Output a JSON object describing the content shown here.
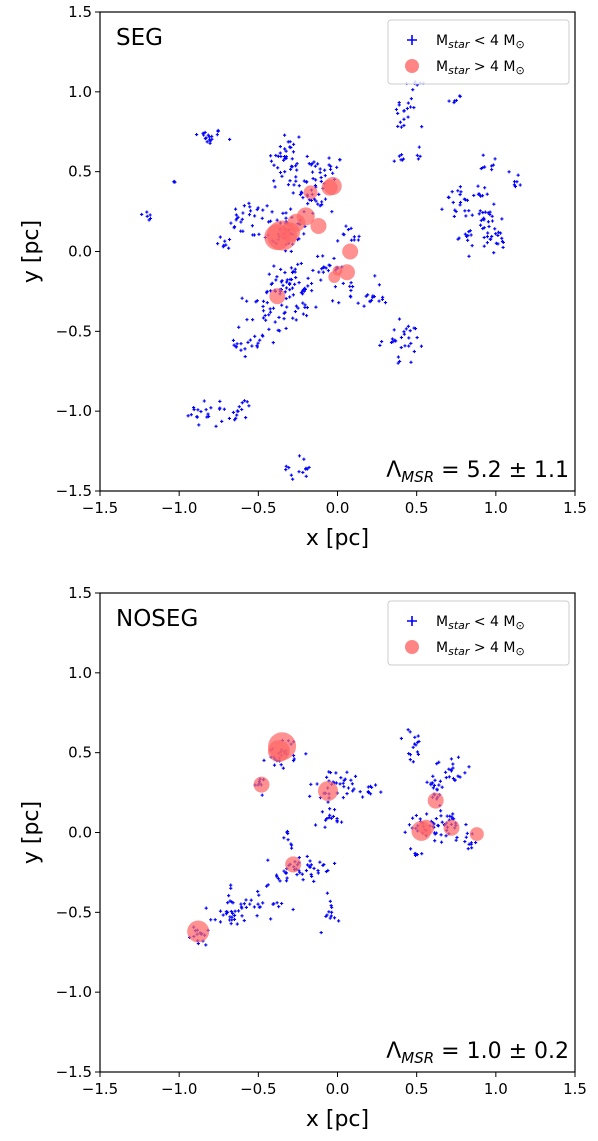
{
  "chart_data": [
    {
      "type": "scatter",
      "title": "SEG",
      "xlabel": "x [pc]",
      "ylabel": "y [pc]",
      "xlim": [
        -1.5,
        1.5
      ],
      "ylim": [
        -1.5,
        1.5
      ],
      "ticks": [
        "−1.5",
        "−1.0",
        "−0.5",
        "0.0",
        "0.5",
        "1.0",
        "1.5"
      ],
      "tick_values": [
        -1.5,
        -1.0,
        -0.5,
        0.0,
        0.5,
        1.0,
        1.5
      ],
      "grid": false,
      "legend_position": "top-right",
      "annotation": {
        "lhs": "Λ",
        "sub": "MSR",
        "rhs": " = 5.2 ± 1.1"
      },
      "series": [
        {
          "name": "Mstar < 4 M⊙",
          "name_main": "M",
          "name_sub": "star",
          "name_rest": " < 4 M",
          "name_sym": "⊙",
          "marker": "plus",
          "color": "#0000ff",
          "clusters": [
            {
              "x": -0.82,
              "y": 0.72,
              "sx": 0.05,
              "sy": 0.025,
              "n": 18
            },
            {
              "x": -1.2,
              "y": 0.22,
              "sx": 0.02,
              "sy": 0.03,
              "n": 6
            },
            {
              "x": -1.03,
              "y": 0.44,
              "sx": 0.01,
              "sy": 0.01,
              "n": 3
            },
            {
              "x": -0.55,
              "y": 0.2,
              "sx": 0.07,
              "sy": 0.06,
              "n": 25
            },
            {
              "x": -0.7,
              "y": 0.05,
              "sx": 0.03,
              "sy": 0.03,
              "n": 8
            },
            {
              "x": -0.35,
              "y": 0.14,
              "sx": 0.08,
              "sy": 0.08,
              "n": 45
            },
            {
              "x": -0.33,
              "y": 0.58,
              "sx": 0.06,
              "sy": 0.1,
              "n": 35
            },
            {
              "x": -0.2,
              "y": 0.45,
              "sx": 0.07,
              "sy": 0.07,
              "n": 30
            },
            {
              "x": -0.12,
              "y": 0.32,
              "sx": 0.06,
              "sy": 0.05,
              "n": 18
            },
            {
              "x": -0.05,
              "y": 0.5,
              "sx": 0.04,
              "sy": 0.06,
              "n": 15
            },
            {
              "x": -0.3,
              "y": -0.22,
              "sx": 0.08,
              "sy": 0.06,
              "n": 35
            },
            {
              "x": -0.45,
              "y": -0.4,
              "sx": 0.07,
              "sy": 0.09,
              "n": 32
            },
            {
              "x": -0.55,
              "y": -0.58,
              "sx": 0.05,
              "sy": 0.05,
              "n": 18
            },
            {
              "x": -0.22,
              "y": -0.35,
              "sx": 0.04,
              "sy": 0.05,
              "n": 15
            },
            {
              "x": -0.35,
              "y": -0.15,
              "sx": 0.06,
              "sy": 0.04,
              "n": 15
            },
            {
              "x": -0.05,
              "y": -0.1,
              "sx": 0.05,
              "sy": 0.04,
              "n": 18
            },
            {
              "x": 0.1,
              "y": -0.25,
              "sx": 0.07,
              "sy": 0.05,
              "n": 18
            },
            {
              "x": 0.25,
              "y": -0.3,
              "sx": 0.04,
              "sy": 0.02,
              "n": 8
            },
            {
              "x": 0.05,
              "y": 0.12,
              "sx": 0.03,
              "sy": 0.03,
              "n": 6
            },
            {
              "x": 0.4,
              "y": -0.55,
              "sx": 0.07,
              "sy": 0.05,
              "n": 26
            },
            {
              "x": 0.38,
              "y": -0.68,
              "sx": 0.02,
              "sy": 0.02,
              "n": 3
            },
            {
              "x": 0.42,
              "y": 0.85,
              "sx": 0.04,
              "sy": 0.06,
              "n": 18
            },
            {
              "x": 0.5,
              "y": 1.06,
              "sx": 0.03,
              "sy": 0.02,
              "n": 7
            },
            {
              "x": 0.75,
              "y": 0.95,
              "sx": 0.02,
              "sy": 0.02,
              "n": 6
            },
            {
              "x": 0.4,
              "y": 0.57,
              "sx": 0.02,
              "sy": 0.02,
              "n": 6
            },
            {
              "x": 0.53,
              "y": 0.63,
              "sx": 0.02,
              "sy": 0.02,
              "n": 4
            },
            {
              "x": 0.8,
              "y": 0.3,
              "sx": 0.06,
              "sy": 0.05,
              "n": 28
            },
            {
              "x": 0.95,
              "y": 0.22,
              "sx": 0.05,
              "sy": 0.07,
              "n": 22
            },
            {
              "x": 1.0,
              "y": 0.06,
              "sx": 0.05,
              "sy": 0.04,
              "n": 18
            },
            {
              "x": 0.83,
              "y": 0.08,
              "sx": 0.05,
              "sy": 0.04,
              "n": 12
            },
            {
              "x": 0.97,
              "y": 0.55,
              "sx": 0.03,
              "sy": 0.03,
              "n": 8
            },
            {
              "x": 1.12,
              "y": 0.45,
              "sx": 0.02,
              "sy": 0.03,
              "n": 8
            },
            {
              "x": -0.8,
              "y": -1.02,
              "sx": 0.08,
              "sy": 0.04,
              "n": 25
            },
            {
              "x": -0.62,
              "y": -0.97,
              "sx": 0.03,
              "sy": 0.04,
              "n": 10
            },
            {
              "x": -0.25,
              "y": -1.36,
              "sx": 0.05,
              "sy": 0.04,
              "n": 14
            },
            {
              "x": 0.12,
              "y": 0.07,
              "sx": 0.02,
              "sy": 0.02,
              "n": 5
            }
          ]
        },
        {
          "name": "Mstar > 4 M⊙",
          "name_main": "M",
          "name_sub": "star",
          "name_rest": " > 4 M",
          "name_sym": "⊙",
          "marker": "circle",
          "color": "#ff6666",
          "points": [
            {
              "x": -0.35,
              "y": 0.1,
              "r": 15
            },
            {
              "x": -0.38,
              "y": 0.09,
              "r": 13
            },
            {
              "x": -0.3,
              "y": 0.12,
              "r": 10
            },
            {
              "x": -0.26,
              "y": 0.18,
              "r": 9
            },
            {
              "x": -0.2,
              "y": 0.22,
              "r": 9
            },
            {
              "x": -0.12,
              "y": 0.16,
              "r": 8
            },
            {
              "x": -0.17,
              "y": 0.37,
              "r": 7
            },
            {
              "x": -0.03,
              "y": 0.41,
              "r": 9
            },
            {
              "x": -0.05,
              "y": 0.4,
              "r": 8
            },
            {
              "x": 0.08,
              "y": 0.0,
              "r": 8
            },
            {
              "x": 0.06,
              "y": -0.13,
              "r": 8
            },
            {
              "x": -0.02,
              "y": -0.16,
              "r": 6
            },
            {
              "x": 0.0,
              "y": -0.12,
              "r": 5
            },
            {
              "x": -0.38,
              "y": -0.28,
              "r": 8
            }
          ]
        }
      ]
    },
    {
      "type": "scatter",
      "title": "NOSEG",
      "xlabel": "x [pc]",
      "ylabel": "y [pc]",
      "xlim": [
        -1.5,
        1.5
      ],
      "ylim": [
        -1.5,
        1.5
      ],
      "ticks": [
        "−1.5",
        "−1.0",
        "−0.5",
        "0.0",
        "0.5",
        "1.0",
        "1.5"
      ],
      "tick_values": [
        -1.5,
        -1.0,
        -0.5,
        0.0,
        0.5,
        1.0,
        1.5
      ],
      "grid": false,
      "legend_position": "top-right",
      "annotation": {
        "lhs": "Λ",
        "sub": "MSR",
        "rhs": " = 1.0 ± 0.2"
      },
      "series": [
        {
          "name": "Mstar < 4 M⊙",
          "name_main": "M",
          "name_sub": "star",
          "name_rest": " < 4 M",
          "name_sym": "⊙",
          "marker": "plus",
          "color": "#0000ff",
          "clusters": [
            {
              "x": -0.35,
              "y": 0.5,
              "sx": 0.05,
              "sy": 0.05,
              "n": 28
            },
            {
              "x": -0.48,
              "y": 0.3,
              "sx": 0.02,
              "sy": 0.03,
              "n": 8
            },
            {
              "x": -0.05,
              "y": 0.27,
              "sx": 0.05,
              "sy": 0.05,
              "n": 20
            },
            {
              "x": 0.05,
              "y": 0.33,
              "sx": 0.05,
              "sy": 0.03,
              "n": 16
            },
            {
              "x": 0.2,
              "y": 0.25,
              "sx": 0.03,
              "sy": 0.03,
              "n": 10
            },
            {
              "x": -0.08,
              "y": 0.08,
              "sx": 0.03,
              "sy": 0.04,
              "n": 10
            },
            {
              "x": 0.0,
              "y": 0.06,
              "sx": 0.02,
              "sy": 0.02,
              "n": 4
            },
            {
              "x": -0.2,
              "y": -0.23,
              "sx": 0.1,
              "sy": 0.05,
              "n": 35
            },
            {
              "x": -0.35,
              "y": -0.27,
              "sx": 0.04,
              "sy": 0.02,
              "n": 10
            },
            {
              "x": -0.3,
              "y": -0.05,
              "sx": 0.03,
              "sy": 0.03,
              "n": 8
            },
            {
              "x": -0.05,
              "y": -0.5,
              "sx": 0.03,
              "sy": 0.06,
              "n": 12
            },
            {
              "x": -0.55,
              "y": -0.45,
              "sx": 0.12,
              "sy": 0.05,
              "n": 40
            },
            {
              "x": -0.7,
              "y": -0.55,
              "sx": 0.05,
              "sy": 0.04,
              "n": 15
            },
            {
              "x": -0.87,
              "y": -0.64,
              "sx": 0.03,
              "sy": 0.04,
              "n": 15
            },
            {
              "x": 0.48,
              "y": 0.52,
              "sx": 0.03,
              "sy": 0.07,
              "n": 16
            },
            {
              "x": 0.6,
              "y": 0.3,
              "sx": 0.05,
              "sy": 0.05,
              "n": 18
            },
            {
              "x": 0.72,
              "y": 0.38,
              "sx": 0.05,
              "sy": 0.05,
              "n": 20
            },
            {
              "x": 0.55,
              "y": 0.05,
              "sx": 0.05,
              "sy": 0.05,
              "n": 25
            },
            {
              "x": 0.7,
              "y": 0.05,
              "sx": 0.06,
              "sy": 0.05,
              "n": 30
            },
            {
              "x": 0.82,
              "y": -0.05,
              "sx": 0.04,
              "sy": 0.03,
              "n": 12
            },
            {
              "x": 0.5,
              "y": -0.12,
              "sx": 0.03,
              "sy": 0.02,
              "n": 6
            }
          ]
        },
        {
          "name": "Mstar > 4 M⊙",
          "name_main": "M",
          "name_sub": "star",
          "name_rest": " > 4 M",
          "name_sym": "⊙",
          "marker": "circle",
          "color": "#ff6666",
          "points": [
            {
              "x": -0.35,
              "y": 0.54,
              "r": 14
            },
            {
              "x": -0.37,
              "y": 0.51,
              "r": 11
            },
            {
              "x": -0.48,
              "y": 0.3,
              "r": 8
            },
            {
              "x": -0.06,
              "y": 0.26,
              "r": 10
            },
            {
              "x": -0.28,
              "y": -0.2,
              "r": 8
            },
            {
              "x": -0.88,
              "y": -0.62,
              "r": 11
            },
            {
              "x": 0.53,
              "y": 0.01,
              "r": 10
            },
            {
              "x": 0.56,
              "y": 0.03,
              "r": 8
            },
            {
              "x": 0.62,
              "y": 0.2,
              "r": 8
            },
            {
              "x": 0.72,
              "y": 0.03,
              "r": 8
            },
            {
              "x": 0.88,
              "y": -0.01,
              "r": 7
            }
          ]
        }
      ]
    }
  ]
}
